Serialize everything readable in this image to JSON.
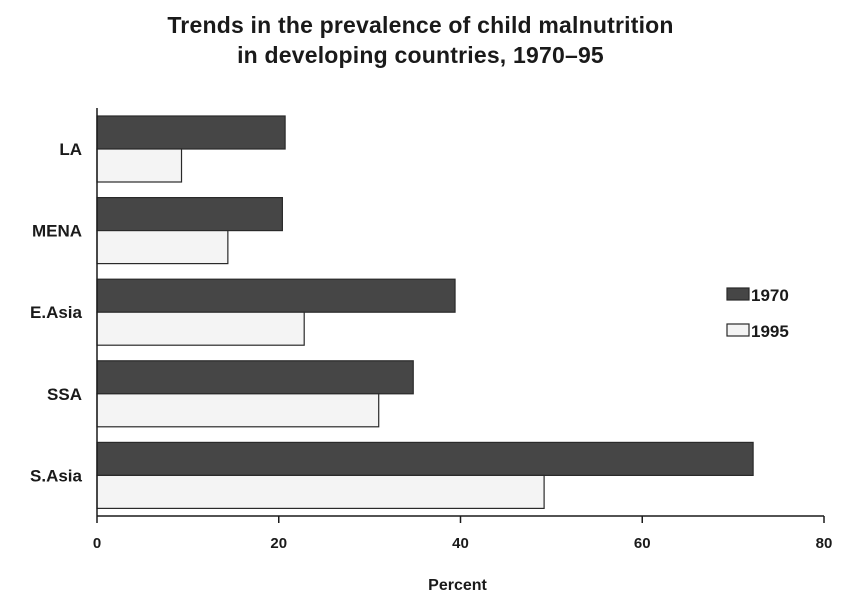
{
  "chart_data": {
    "type": "bar",
    "orientation": "horizontal",
    "title": "Trends in the prevalence of child malnutrition",
    "subtitle": "in developing countries, 1970–95",
    "xlabel": "Percent",
    "ylabel": "",
    "categories": [
      "LA",
      "MENA",
      "E.Asia",
      "SSA",
      "S.Asia"
    ],
    "series": [
      {
        "name": "1970",
        "color": "#464646",
        "values": [
          20.7,
          20.4,
          39.4,
          34.8,
          72.2
        ]
      },
      {
        "name": "1995",
        "color": "#f4f4f4",
        "values": [
          9.3,
          14.4,
          22.8,
          31.0,
          49.2
        ]
      }
    ],
    "xlim": [
      0,
      80
    ],
    "xticks": [
      0,
      20,
      40,
      60,
      80
    ],
    "grid": false,
    "legend_position": "right"
  }
}
